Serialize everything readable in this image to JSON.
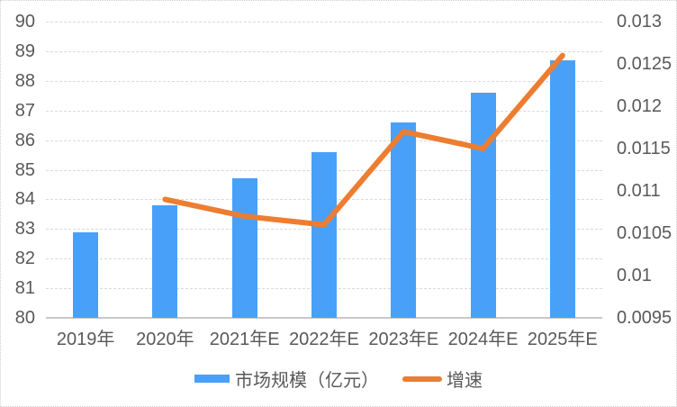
{
  "chart_data": {
    "type": "bar",
    "subtype": "combo-bar-line-dual-axis",
    "categories": [
      "2019年",
      "2020年",
      "2021年E",
      "2022年E",
      "2023年E",
      "2024年E",
      "2025年E"
    ],
    "series": [
      {
        "name": "市场规模（亿元）",
        "type": "bar",
        "axis": "left",
        "color": "#49A0F8",
        "values": [
          82.9,
          83.8,
          84.7,
          85.6,
          86.6,
          87.6,
          88.7
        ]
      },
      {
        "name": "增速",
        "type": "line",
        "axis": "right",
        "color": "#ED7D31",
        "values": [
          null,
          0.0109,
          0.0107,
          0.0106,
          0.0117,
          0.0115,
          0.0126
        ]
      }
    ],
    "title": "",
    "xlabel": "",
    "ylabel": "",
    "left_axis": {
      "min": 80,
      "max": 90,
      "ticks": [
        "90",
        "89",
        "88",
        "87",
        "86",
        "85",
        "84",
        "83",
        "82",
        "81",
        "80"
      ]
    },
    "right_axis": {
      "min": 0.0095,
      "max": 0.013,
      "ticks": [
        "0.013",
        "0.0125",
        "0.012",
        "0.0115",
        "0.011",
        "0.0105",
        "0.01",
        "0.0095"
      ]
    },
    "grid": true,
    "legend_position": "bottom",
    "colors": {
      "bar": "#49A0F8",
      "line": "#ED7D31",
      "gridline": "#DADADA",
      "axis_line": "#C9C9C9",
      "text": "#595959",
      "background": "#FFFFFF",
      "frame_border": "#CFCFCF"
    }
  }
}
